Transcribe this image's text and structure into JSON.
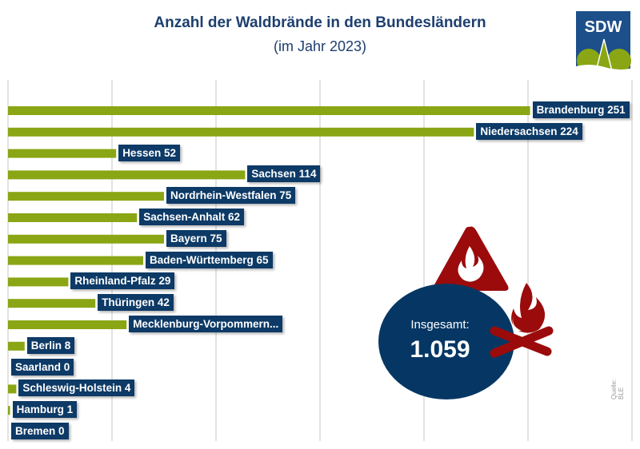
{
  "chart_data": {
    "type": "bar",
    "orientation": "horizontal",
    "title": "Anzahl der Waldbrände in den Bundesländern",
    "subtitle": "(im Jahr 2023)",
    "categories": [
      "Brandenburg",
      "Niedersachsen",
      "Hessen",
      "Sachsen",
      "Nordrhein-Westfalen",
      "Sachsen-Anhalt",
      "Bayern",
      "Baden-Württemberg",
      "Rheinland-Pfalz",
      "Thüringen",
      "Mecklenburg-Vorpommern",
      "Berlin",
      "Saarland",
      "Schleswig-Holstein",
      "Hamburg",
      "Bremen"
    ],
    "values": [
      251,
      224,
      52,
      114,
      75,
      62,
      75,
      65,
      29,
      42,
      57,
      8,
      0,
      4,
      1,
      0
    ],
    "data_labels": [
      "Brandenburg 251",
      "Niedersachsen 224",
      "Hessen 52",
      "Sachsen 114",
      "Nordrhein-Westfalen 75",
      "Sachsen-Anhalt 62",
      "Bayern 75",
      "Baden-Württemberg 65",
      "Rheinland-Pfalz 29",
      "Thüringen 42",
      "Mecklenburg-Vorpommern...",
      "Berlin 8",
      "Saarland 0",
      "Schleswig-Holstein 4",
      "Hamburg 1",
      "Bremen 0"
    ],
    "xlim": [
      0,
      300
    ],
    "grid": true,
    "bar_color": "#8aa614",
    "label_color": "#0d3a66"
  },
  "total": {
    "label": "Insgesamt:",
    "value": "1.059"
  },
  "logo": {
    "text": "SDW"
  },
  "source": "Quelle: BLE",
  "colors": {
    "title": "#1d3f6e",
    "circle": "#063764",
    "icon": "#9b0b0b"
  },
  "icons": [
    "fire-warning-triangle-icon",
    "campfire-icon"
  ]
}
